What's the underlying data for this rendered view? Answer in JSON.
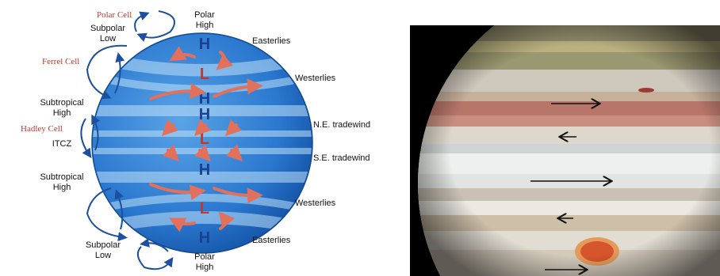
{
  "earth_diagram": {
    "cells": {
      "polar": "Polar Cell",
      "ferrel": "Ferrel Cell",
      "hadley": "Hadley Cell"
    },
    "left_labels": {
      "subpolar_low_top": [
        "Subpolar",
        "Low"
      ],
      "subtropical_high_top": [
        "Subtropical",
        "High"
      ],
      "itcz": "ITCZ",
      "subtropical_high_bottom": [
        "Subtropical",
        "High"
      ],
      "subpolar_low_bottom": [
        "Subpolar",
        "Low"
      ]
    },
    "pole_labels": {
      "top": [
        "Polar",
        "High"
      ],
      "bottom": [
        "Polar",
        "High"
      ]
    },
    "wind_labels": {
      "easterlies_top": "Easterlies",
      "westerlies_top": "Westerlies",
      "ne_tradewind": "N.E. tradewind",
      "se_tradewind": "S.E. tradewind",
      "westerlies_bottom": "Westerlies",
      "easterlies_bottom": "Easterlies"
    },
    "pressure_letters": {
      "h": "H",
      "l": "L"
    },
    "colors": {
      "globe_dark": "#1f6fc7",
      "globe_light": "#7fbbe8",
      "cell_label": "#c0392b",
      "high": "#1d3f8f",
      "low": "#c0392b",
      "arrow": "#e2705a",
      "circulation_arrow": "#1d4f9f"
    }
  }
}
